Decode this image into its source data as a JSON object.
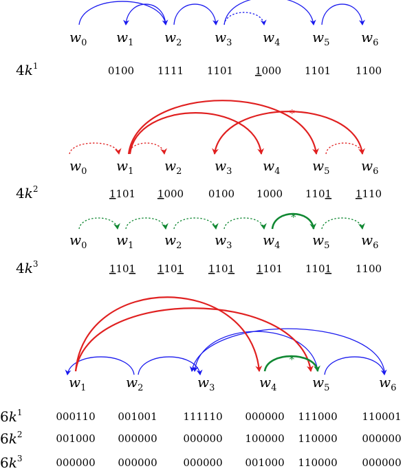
{
  "colors": {
    "blue": "#1a1aee",
    "red": "#e02020",
    "green": "#118833"
  },
  "diagram1": {
    "words": [
      {
        "base": "w",
        "sub": "0"
      },
      {
        "base": "w",
        "sub": "1"
      },
      {
        "base": "w",
        "sub": "2"
      },
      {
        "base": "w",
        "sub": "3"
      },
      {
        "base": "w",
        "sub": "4"
      },
      {
        "base": "w",
        "sub": "5"
      },
      {
        "base": "w",
        "sub": "6"
      }
    ],
    "arcs": [
      {
        "from": 1,
        "to": 2,
        "head": "from",
        "color": "blue",
        "style": "solid"
      },
      {
        "from": 0,
        "to": 2,
        "head": "to",
        "color": "blue",
        "style": "solid"
      },
      {
        "from": 2,
        "to": 3,
        "head": "to",
        "color": "blue",
        "style": "solid"
      },
      {
        "from": 3,
        "to": 4,
        "head": "to",
        "color": "blue",
        "style": "dotted"
      },
      {
        "from": 3,
        "to": 5,
        "head": "to",
        "color": "blue",
        "style": "solid"
      },
      {
        "from": 5,
        "to": 6,
        "head": "to",
        "color": "blue",
        "style": "solid"
      }
    ],
    "rows": [
      {
        "label": {
          "num": "4",
          "k": "k",
          "sup": "1"
        },
        "codes": [
          [],
          [
            [
              "0100",
              ""
            ]
          ],
          [
            [
              "1111",
              ""
            ]
          ],
          [
            [
              "1101",
              ""
            ]
          ],
          [
            [
              "1",
              "u"
            ],
            [
              "000",
              ""
            ]
          ],
          [
            [
              "1101",
              ""
            ]
          ],
          [
            [
              "1100",
              ""
            ]
          ]
        ]
      }
    ]
  },
  "diagram2": {
    "words": [
      {
        "base": "w",
        "sub": "0"
      },
      {
        "base": "w",
        "sub": "1"
      },
      {
        "base": "w",
        "sub": "2"
      },
      {
        "base": "w",
        "sub": "3"
      },
      {
        "base": "w",
        "sub": "4"
      },
      {
        "base": "w",
        "sub": "5"
      },
      {
        "base": "w",
        "sub": "6"
      }
    ],
    "arcs": [
      {
        "from": 0,
        "to": 1,
        "head": "to",
        "color": "red",
        "style": "dotted"
      },
      {
        "from": 1,
        "to": 2,
        "head": "to",
        "color": "red",
        "style": "dotted"
      },
      {
        "from": 5,
        "to": 6,
        "head": "to",
        "color": "red",
        "style": "dotted"
      },
      {
        "from": 1,
        "to": 5,
        "head": "to",
        "color": "red",
        "style": "solid",
        "star": true
      },
      {
        "from": 1,
        "to": 4,
        "head": "to",
        "color": "red",
        "style": "solid"
      },
      {
        "from": 3,
        "to": 6,
        "head": "from",
        "color": "red",
        "style": "solid"
      }
    ],
    "star": "*",
    "rows": [
      {
        "label": {
          "num": "4",
          "k": "k",
          "sup": "2"
        },
        "codes": [
          [
            [
              "1",
              "u"
            ],
            [
              "101",
              ""
            ]
          ],
          [
            [
              "1",
              "u"
            ],
            [
              "000",
              ""
            ]
          ],
          [
            [
              "0100",
              ""
            ]
          ],
          [
            [
              "1000",
              ""
            ]
          ],
          [
            [
              "110",
              ""
            ],
            [
              "1",
              "u"
            ]
          ],
          [
            [
              "1",
              "u"
            ],
            [
              "110",
              ""
            ]
          ]
        ]
      }
    ]
  },
  "diagram3": {
    "words": [
      {
        "base": "w",
        "sub": "0"
      },
      {
        "base": "w",
        "sub": "1"
      },
      {
        "base": "w",
        "sub": "2"
      },
      {
        "base": "w",
        "sub": "3"
      },
      {
        "base": "w",
        "sub": "4"
      },
      {
        "base": "w",
        "sub": "5"
      },
      {
        "base": "w",
        "sub": "6"
      }
    ],
    "arcs": [
      {
        "from": 0,
        "to": 1,
        "head": "to",
        "color": "green",
        "style": "dotted"
      },
      {
        "from": 1,
        "to": 2,
        "head": "to",
        "color": "green",
        "style": "dotted"
      },
      {
        "from": 2,
        "to": 3,
        "head": "to",
        "color": "green",
        "style": "dotted"
      },
      {
        "from": 3,
        "to": 4,
        "head": "to",
        "color": "green",
        "style": "dotted"
      },
      {
        "from": 4,
        "to": 5,
        "head": "to",
        "color": "green",
        "style": "solid",
        "star": true
      },
      {
        "from": 5,
        "to": 6,
        "head": "to",
        "color": "green",
        "style": "dotted"
      }
    ],
    "star": "*",
    "rows": [
      {
        "label": {
          "num": "4",
          "k": "k",
          "sup": "3"
        },
        "codes": [
          [
            [
              "1",
              "u"
            ],
            [
              "10",
              ""
            ],
            [
              "1",
              "u"
            ]
          ],
          [
            [
              "1",
              "u"
            ],
            [
              "10",
              ""
            ],
            [
              "1",
              "u"
            ]
          ],
          [
            [
              "1",
              "u"
            ],
            [
              "10",
              ""
            ],
            [
              "1",
              "u"
            ]
          ],
          [
            [
              "1",
              "u"
            ],
            [
              "101",
              ""
            ]
          ],
          [
            [
              "110",
              ""
            ],
            [
              "1",
              "u"
            ]
          ],
          [
            [
              "1100",
              ""
            ]
          ]
        ]
      }
    ]
  },
  "diagram4": {
    "words": [
      {
        "base": "w",
        "sub": "1"
      },
      {
        "base": "w",
        "sub": "2"
      },
      {
        "base": "w",
        "sub": "3"
      },
      {
        "base": "w",
        "sub": "4"
      },
      {
        "base": "w",
        "sub": "5"
      },
      {
        "base": "w",
        "sub": "6"
      }
    ],
    "arcs": [
      {
        "from": 1,
        "to": 2,
        "head": "to",
        "color": "blue",
        "style": "solid"
      },
      {
        "from": 0,
        "to": 1,
        "head": "from",
        "color": "blue",
        "style": "solid"
      },
      {
        "from": 2,
        "to": 4,
        "head": "from",
        "color": "blue",
        "style": "solid"
      },
      {
        "from": 2,
        "to": 5,
        "head": "from",
        "color": "blue",
        "style": "solid"
      },
      {
        "from": 4,
        "to": 5,
        "head": "to",
        "color": "blue",
        "style": "solid"
      },
      {
        "from": 0,
        "to": 3,
        "head": "to",
        "color": "red",
        "style": "solid"
      },
      {
        "from": 0,
        "to": 4,
        "head": "to",
        "color": "red",
        "style": "solid"
      },
      {
        "from": 3,
        "to": 4,
        "head": "to",
        "color": "green",
        "style": "solid",
        "star": true
      }
    ],
    "star": "*",
    "rows": [
      {
        "label": {
          "num": "6",
          "k": "k",
          "sup": "1"
        },
        "codes": [
          [
            [
              "000110",
              ""
            ]
          ],
          [
            [
              "001001",
              ""
            ]
          ],
          [
            [
              "111110",
              ""
            ]
          ],
          [
            [
              "000000",
              ""
            ]
          ],
          [
            [
              "111000",
              ""
            ]
          ],
          [
            [
              "110001",
              ""
            ]
          ]
        ]
      },
      {
        "label": {
          "num": "6",
          "k": "k",
          "sup": "2"
        },
        "codes": [
          [
            [
              "001000",
              ""
            ]
          ],
          [
            [
              "000000",
              ""
            ]
          ],
          [
            [
              "000000",
              ""
            ]
          ],
          [
            [
              "100000",
              ""
            ]
          ],
          [
            [
              "110000",
              ""
            ]
          ],
          [
            [
              "000000",
              ""
            ]
          ]
        ]
      },
      {
        "label": {
          "num": "6",
          "k": "k",
          "sup": "3"
        },
        "codes": [
          [
            [
              "000000",
              ""
            ]
          ],
          [
            [
              "000000",
              ""
            ]
          ],
          [
            [
              "000000",
              ""
            ]
          ],
          [
            [
              "001000",
              ""
            ]
          ],
          [
            [
              "110000",
              ""
            ]
          ],
          [
            [
              "000000",
              ""
            ]
          ]
        ]
      }
    ]
  }
}
